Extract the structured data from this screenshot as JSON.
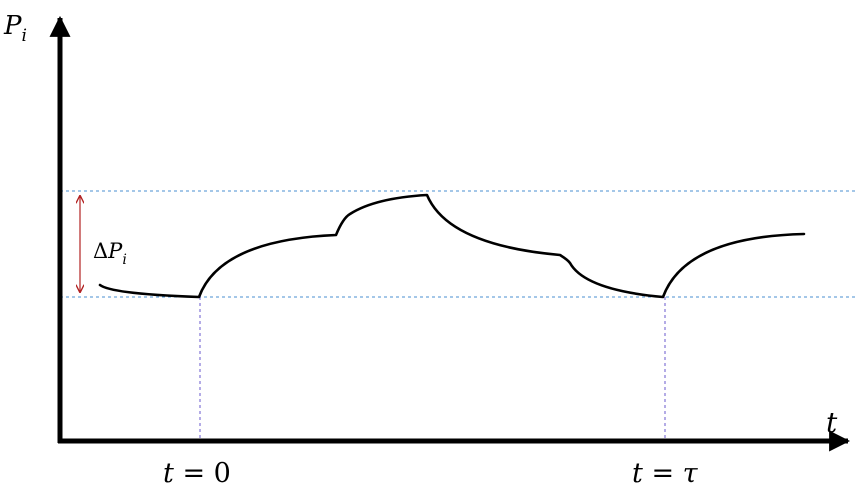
{
  "axes": {
    "y_label": {
      "main": "P",
      "sub": "i"
    },
    "x_label": "t"
  },
  "annotation": {
    "delta": {
      "symbol": "Δ",
      "main": "P",
      "sub": "i"
    }
  },
  "markers": {
    "start": {
      "var": "t",
      "eq": " = ",
      "value": "0"
    },
    "period": {
      "var": "t",
      "eq": " = ",
      "value": "τ"
    }
  },
  "colors": {
    "axis": "#000000",
    "curve": "#000000",
    "level_lines": "#4a8fd0",
    "vertical_markers": "#6a5acd",
    "delta_arrow": "#b22222"
  }
}
